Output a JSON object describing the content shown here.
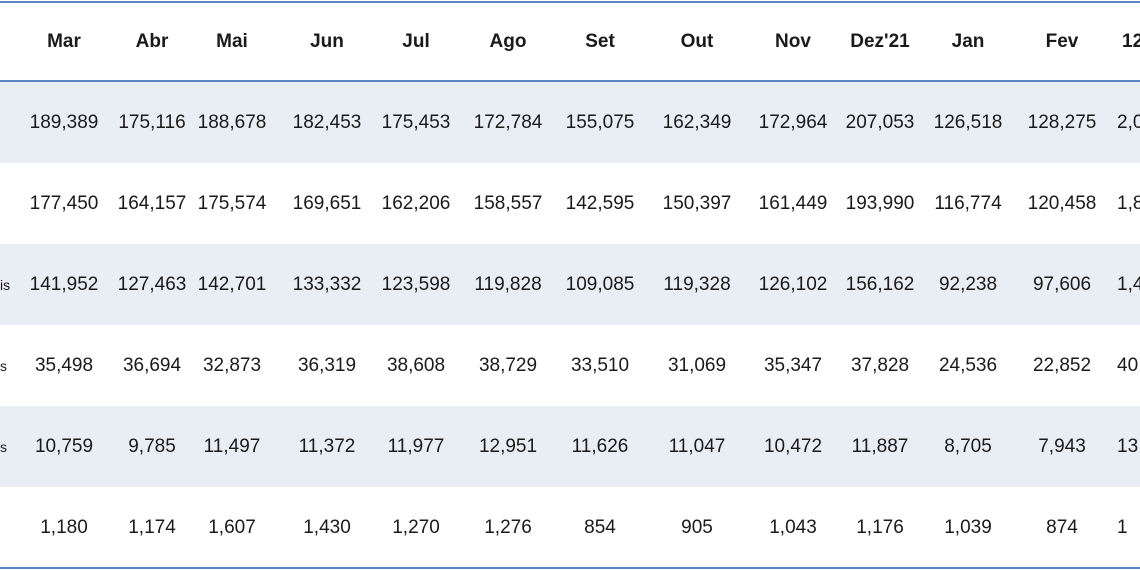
{
  "header": [
    "Mar",
    "Abr",
    "Mai",
    "Jun",
    "Jul",
    "Ago",
    "Set",
    "Out",
    "Nov",
    "Dez'21",
    "Jan",
    "Fev"
  ],
  "header_last": "12",
  "rows": [
    {
      "label": "",
      "values": [
        "189,389",
        "175,116",
        "188,678",
        "182,453",
        "175,453",
        "172,784",
        "155,075",
        "162,349",
        "172,964",
        "207,053",
        "126,518",
        "128,275"
      ],
      "last": "2,0"
    },
    {
      "label": "",
      "values": [
        "177,450",
        "164,157",
        "175,574",
        "169,651",
        "162,206",
        "158,557",
        "142,595",
        "150,397",
        "161,449",
        "193,990",
        "116,774",
        "120,458"
      ],
      "last": "1,8"
    },
    {
      "label": "is",
      "values": [
        "141,952",
        "127,463",
        "142,701",
        "133,332",
        "123,598",
        "119,828",
        "109,085",
        "119,328",
        "126,102",
        "156,162",
        "92,238",
        "97,606"
      ],
      "last": "1,4"
    },
    {
      "label": "s",
      "values": [
        "35,498",
        "36,694",
        "32,873",
        "36,319",
        "38,608",
        "38,729",
        "33,510",
        "31,069",
        "35,347",
        "37,828",
        "24,536",
        "22,852"
      ],
      "last": "40"
    },
    {
      "label": "s",
      "values": [
        "10,759",
        "9,785",
        "11,497",
        "11,372",
        "11,977",
        "12,951",
        "11,626",
        "11,047",
        "10,472",
        "11,887",
        "8,705",
        "7,943"
      ],
      "last": "13"
    },
    {
      "label": "",
      "values": [
        "1,180",
        "1,174",
        "1,607",
        "1,430",
        "1,270",
        "1,276",
        "854",
        "905",
        "1,043",
        "1,176",
        "1,039",
        "874"
      ],
      "last": "1"
    }
  ],
  "colors": {
    "border": "#5b84c4",
    "stripe": "#e9edf4"
  }
}
